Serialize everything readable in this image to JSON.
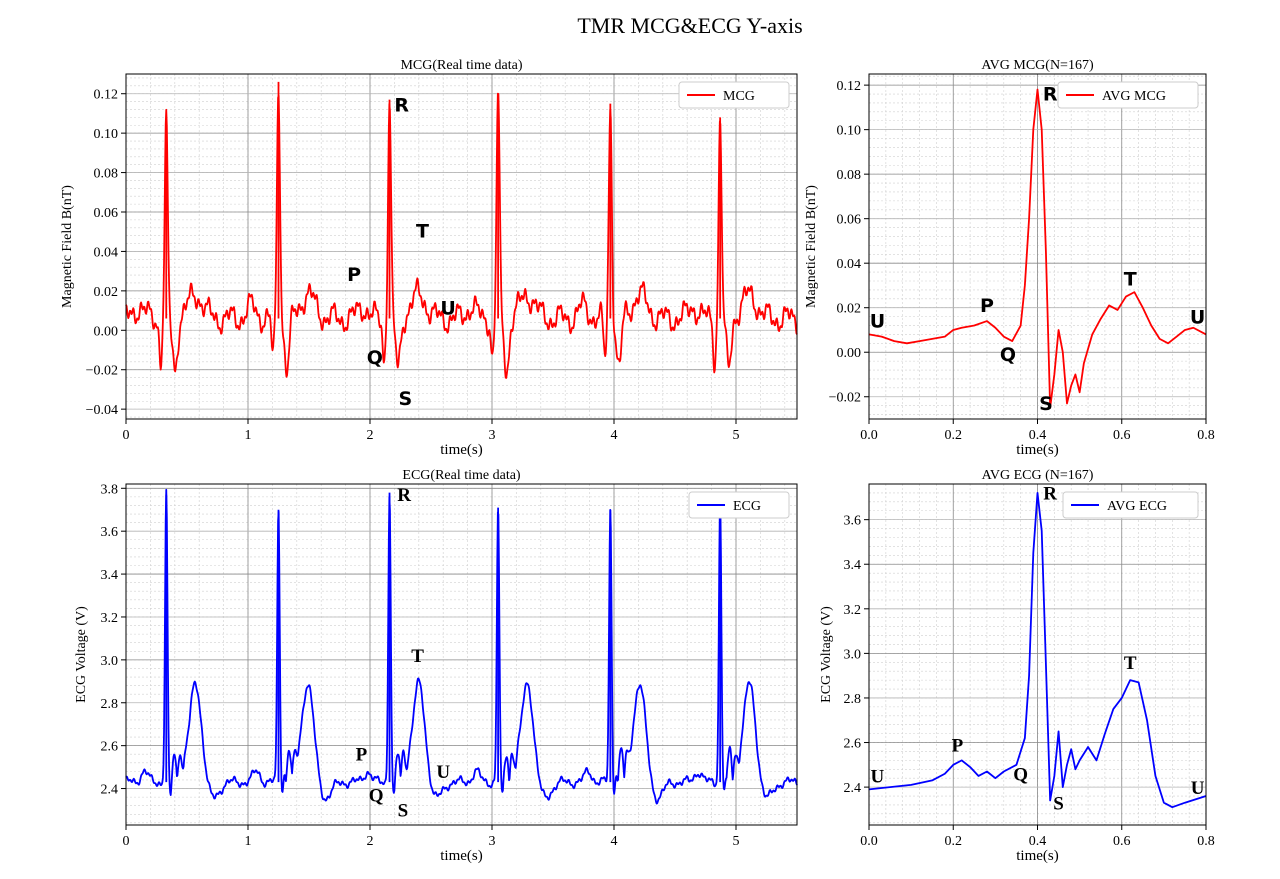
{
  "figure_title": "TMR  MCG&ECG  Y-axis",
  "chart_data": [
    {
      "id": "mcg-rt",
      "type": "line",
      "title": "MCG(Real time data)",
      "xlabel": "time(s)",
      "ylabel": "Magnetic Field B(nT)",
      "xlim": [
        0,
        5.5
      ],
      "ylim": [
        -0.045,
        0.13
      ],
      "xticks": [
        0,
        1,
        2,
        3,
        4,
        5
      ],
      "xtick_labels": [
        "0",
        "1",
        "2",
        "3",
        "4",
        "5"
      ],
      "yticks": [
        -0.04,
        -0.02,
        0.0,
        0.02,
        0.04,
        0.06,
        0.08,
        0.1,
        0.12
      ],
      "ytick_labels": [
        "−0.04",
        "−0.02",
        "0.00",
        "0.02",
        "0.04",
        "0.06",
        "0.08",
        "0.10",
        "0.12"
      ],
      "grid": true,
      "legend_position": "top-right",
      "series": [
        {
          "name": "MCG",
          "color": "#ff0000",
          "kind": "mcg",
          "beats": [
            0.33,
            1.25,
            2.16,
            3.05,
            3.97,
            4.87
          ],
          "r_peaks": [
            0.104,
            0.126,
            0.117,
            0.12,
            0.115,
            0.108
          ],
          "baseline": 0.006
        }
      ],
      "annotations": [
        {
          "text": "R",
          "x": 2.26,
          "y": 0.111,
          "font": "sans"
        },
        {
          "text": "T",
          "x": 2.43,
          "y": 0.047,
          "font": "sans"
        },
        {
          "text": "P",
          "x": 1.87,
          "y": 0.025,
          "font": "sans"
        },
        {
          "text": "U",
          "x": 2.64,
          "y": 0.008,
          "font": "sans"
        },
        {
          "text": "Q",
          "x": 2.04,
          "y": -0.017,
          "font": "sans"
        },
        {
          "text": "S",
          "x": 2.29,
          "y": -0.038,
          "font": "sans"
        }
      ]
    },
    {
      "id": "mcg-avg",
      "type": "line",
      "title": "AVG MCG(N=167)",
      "xlabel": "time(s)",
      "ylabel": "Magnetic Field B(nT)",
      "xlim": [
        0,
        0.8
      ],
      "ylim": [
        -0.03,
        0.125
      ],
      "xticks": [
        0,
        0.2,
        0.4,
        0.6,
        0.8
      ],
      "xtick_labels": [
        "0.0",
        "0.2",
        "0.4",
        "0.6",
        "0.8"
      ],
      "yticks": [
        -0.02,
        0.0,
        0.02,
        0.04,
        0.06,
        0.08,
        0.1,
        0.12
      ],
      "ytick_labels": [
        "−0.02",
        "0.00",
        "0.02",
        "0.04",
        "0.06",
        "0.08",
        "0.10",
        "0.12"
      ],
      "grid": true,
      "legend_position": "top-right",
      "series": [
        {
          "name": "AVG MCG",
          "color": "#ff0000",
          "x": [
            0.0,
            0.03,
            0.06,
            0.09,
            0.12,
            0.15,
            0.18,
            0.2,
            0.22,
            0.25,
            0.28,
            0.3,
            0.32,
            0.34,
            0.36,
            0.37,
            0.38,
            0.39,
            0.4,
            0.41,
            0.42,
            0.43,
            0.44,
            0.45,
            0.46,
            0.47,
            0.48,
            0.49,
            0.5,
            0.51,
            0.53,
            0.55,
            0.57,
            0.59,
            0.61,
            0.63,
            0.65,
            0.67,
            0.69,
            0.71,
            0.73,
            0.75,
            0.77,
            0.8
          ],
          "y": [
            0.008,
            0.007,
            0.005,
            0.004,
            0.005,
            0.006,
            0.007,
            0.01,
            0.011,
            0.012,
            0.014,
            0.011,
            0.007,
            0.005,
            0.012,
            0.03,
            0.06,
            0.1,
            0.118,
            0.1,
            0.045,
            -0.025,
            -0.01,
            0.01,
            0.0,
            -0.023,
            -0.015,
            -0.01,
            -0.018,
            -0.005,
            0.008,
            0.015,
            0.021,
            0.019,
            0.025,
            0.027,
            0.02,
            0.012,
            0.006,
            0.004,
            0.007,
            0.01,
            0.011,
            0.008
          ]
        }
      ],
      "annotations": [
        {
          "text": "R",
          "x": 0.43,
          "y": 0.113,
          "font": "sans"
        },
        {
          "text": "T",
          "x": 0.62,
          "y": 0.03,
          "font": "sans"
        },
        {
          "text": "P",
          "x": 0.28,
          "y": 0.018,
          "font": "sans"
        },
        {
          "text": "U",
          "x": 0.02,
          "y": 0.011,
          "font": "sans"
        },
        {
          "text": "U",
          "x": 0.78,
          "y": 0.013,
          "font": "sans"
        },
        {
          "text": "Q",
          "x": 0.33,
          "y": -0.004,
          "font": "sans"
        },
        {
          "text": "S",
          "x": 0.42,
          "y": -0.026,
          "font": "sans"
        }
      ]
    },
    {
      "id": "ecg-rt",
      "type": "line",
      "title": "ECG(Real time data)",
      "xlabel": "time(s)",
      "ylabel": "ECG Voltage (V)",
      "xlim": [
        0,
        5.5
      ],
      "ylim": [
        2.23,
        3.82
      ],
      "xticks": [
        0,
        1,
        2,
        3,
        4,
        5
      ],
      "xtick_labels": [
        "0",
        "1",
        "2",
        "3",
        "4",
        "5"
      ],
      "yticks": [
        2.4,
        2.6,
        2.8,
        3.0,
        3.2,
        3.4,
        3.6,
        3.8
      ],
      "ytick_labels": [
        "2.4",
        "2.6",
        "2.8",
        "3.0",
        "3.2",
        "3.4",
        "3.6",
        "3.8"
      ],
      "grid": true,
      "legend_position": "top-right",
      "series": [
        {
          "name": "ECG",
          "color": "#0000ff",
          "kind": "ecg",
          "beats": [
            0.33,
            1.25,
            2.16,
            3.05,
            3.97,
            4.87
          ],
          "r_peaks": [
            3.77,
            3.7,
            3.78,
            3.71,
            3.7,
            3.75
          ],
          "baseline": 2.43
        }
      ],
      "annotations": [
        {
          "text": "R",
          "x": 2.28,
          "y": 3.74,
          "font": "serif"
        },
        {
          "text": "T",
          "x": 2.39,
          "y": 2.99,
          "font": "serif"
        },
        {
          "text": "P",
          "x": 1.93,
          "y": 2.53,
          "font": "serif"
        },
        {
          "text": "U",
          "x": 2.6,
          "y": 2.45,
          "font": "serif"
        },
        {
          "text": "Q",
          "x": 2.05,
          "y": 2.34,
          "font": "serif"
        },
        {
          "text": "S",
          "x": 2.27,
          "y": 2.27,
          "font": "serif"
        }
      ]
    },
    {
      "id": "ecg-avg",
      "type": "line",
      "title": "AVG ECG (N=167)",
      "xlabel": "time(s)",
      "ylabel": "ECG Voltage (V)",
      "xlim": [
        0,
        0.8
      ],
      "ylim": [
        2.23,
        3.76
      ],
      "xticks": [
        0,
        0.2,
        0.4,
        0.6,
        0.8
      ],
      "xtick_labels": [
        "0.0",
        "0.2",
        "0.4",
        "0.6",
        "0.8"
      ],
      "yticks": [
        2.4,
        2.6,
        2.8,
        3.0,
        3.2,
        3.4,
        3.6
      ],
      "ytick_labels": [
        "2.4",
        "2.6",
        "2.8",
        "3.0",
        "3.2",
        "3.4",
        "3.6"
      ],
      "grid": true,
      "legend_position": "top-right",
      "series": [
        {
          "name": "AVG ECG",
          "color": "#0000ff",
          "x": [
            0.0,
            0.05,
            0.1,
            0.15,
            0.18,
            0.2,
            0.22,
            0.24,
            0.26,
            0.28,
            0.3,
            0.32,
            0.35,
            0.37,
            0.38,
            0.39,
            0.4,
            0.41,
            0.42,
            0.43,
            0.44,
            0.45,
            0.46,
            0.47,
            0.48,
            0.49,
            0.5,
            0.52,
            0.54,
            0.56,
            0.58,
            0.6,
            0.62,
            0.64,
            0.66,
            0.68,
            0.7,
            0.72,
            0.75,
            0.8
          ],
          "y": [
            2.39,
            2.4,
            2.41,
            2.43,
            2.46,
            2.5,
            2.52,
            2.49,
            2.45,
            2.47,
            2.44,
            2.47,
            2.5,
            2.62,
            2.9,
            3.45,
            3.72,
            3.55,
            2.95,
            2.34,
            2.45,
            2.65,
            2.4,
            2.5,
            2.57,
            2.48,
            2.52,
            2.58,
            2.52,
            2.64,
            2.75,
            2.8,
            2.88,
            2.87,
            2.7,
            2.45,
            2.33,
            2.31,
            2.33,
            2.36
          ]
        }
      ],
      "annotations": [
        {
          "text": "R",
          "x": 0.43,
          "y": 3.69,
          "font": "serif"
        },
        {
          "text": "T",
          "x": 0.62,
          "y": 2.93,
          "font": "serif"
        },
        {
          "text": "P",
          "x": 0.21,
          "y": 2.56,
          "font": "serif"
        },
        {
          "text": "U",
          "x": 0.02,
          "y": 2.42,
          "font": "serif"
        },
        {
          "text": "U",
          "x": 0.78,
          "y": 2.37,
          "font": "serif"
        },
        {
          "text": "Q",
          "x": 0.36,
          "y": 2.43,
          "font": "serif"
        },
        {
          "text": "S",
          "x": 0.45,
          "y": 2.3,
          "font": "serif"
        }
      ]
    }
  ]
}
